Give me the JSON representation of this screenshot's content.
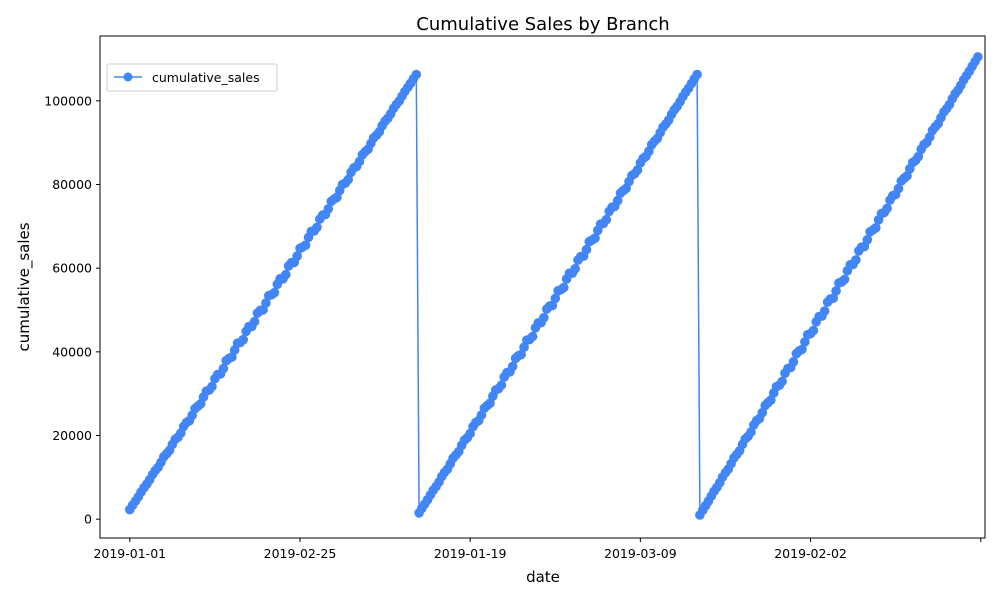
{
  "chart_data": {
    "type": "line",
    "title": "Cumulative Sales by Branch",
    "xlabel": "date",
    "ylabel": "cumulative_sales",
    "ylim": [
      -4500,
      115500
    ],
    "yticks": [
      0,
      20000,
      40000,
      60000,
      80000,
      100000
    ],
    "ytick_labels": [
      "0",
      "20000",
      "40000",
      "60000",
      "80000",
      "100000"
    ],
    "x_count": 300,
    "xlim": [
      -10.5,
      301.5
    ],
    "xticks": [
      0,
      60,
      120,
      180,
      240,
      300
    ],
    "xtick_labels": [
      "2019-01-01",
      "2019-02-25",
      "2019-01-19",
      "2019-03-09",
      "2019-02-02",
      ""
    ],
    "grid": false,
    "legend": {
      "position": "top-left",
      "entries": [
        "cumulative_sales"
      ]
    },
    "color": "#4285f4",
    "series": [
      {
        "name": "cumulative_sales",
        "segments": [
          {
            "start_index": 0,
            "end_index": 101,
            "start_value": 2300,
            "end_value": 106300
          },
          {
            "start_index": 102,
            "end_index": 200,
            "start_value": 1500,
            "end_value": 106300
          },
          {
            "start_index": 201,
            "end_index": 299,
            "start_value": 1000,
            "end_value": 110500
          }
        ]
      }
    ]
  }
}
